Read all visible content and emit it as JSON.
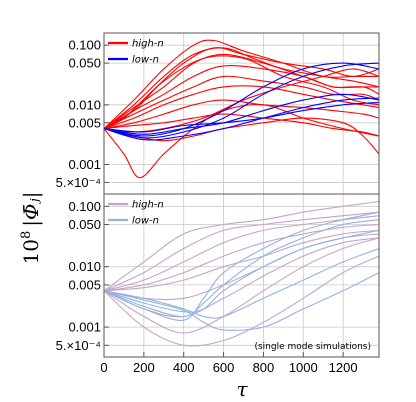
{
  "chart_data": {
    "type": "line",
    "xlabel": "τ",
    "ylabel_prefix": "10",
    "ylabel_exp": "8",
    "ylabel_symbol": "|Φ̄ⱼ|",
    "xlim": [
      0,
      1380
    ],
    "ylim": [
      0.00032,
      0.16
    ],
    "yscale": "log",
    "x_ticks": [
      0,
      200,
      400,
      600,
      800,
      1000,
      1200
    ],
    "x_tick_labels": [
      "0",
      "200",
      "400",
      "600",
      "800",
      "1000",
      "1200"
    ],
    "y_ticks": [
      0.0005,
      0.001,
      0.005,
      0.01,
      0.05,
      0.1
    ],
    "y_tick_labels": [
      "5.×10⁻⁴",
      "0.001",
      "0.005",
      "0.010",
      "0.050",
      "0.100"
    ],
    "grid": true,
    "panels": [
      {
        "id": "top",
        "legend_position": "top-left",
        "series": [
          {
            "name": "high-n",
            "color": "#ff0000",
            "curves": [
              {
                "x": [
                  0,
                  150,
                  300,
                  450,
                  550,
                  700,
                  900,
                  1100,
                  1250,
                  1380
                ],
                "y": [
                  0.004,
                  0.012,
                  0.04,
                  0.1,
                  0.12,
                  0.08,
                  0.05,
                  0.03,
                  0.03,
                  0.03
                ]
              },
              {
                "x": [
                  0,
                  150,
                  300,
                  450,
                  600,
                  750,
                  900,
                  1100,
                  1250,
                  1380
                ],
                "y": [
                  0.004,
                  0.01,
                  0.03,
                  0.07,
                  0.09,
                  0.06,
                  0.04,
                  0.03,
                  0.025,
                  0.02
                ]
              },
              {
                "x": [
                  0,
                  150,
                  300,
                  450,
                  600,
                  800,
                  1000,
                  1150,
                  1300,
                  1380
                ],
                "y": [
                  0.004,
                  0.009,
                  0.02,
                  0.05,
                  0.07,
                  0.05,
                  0.03,
                  0.02,
                  0.02,
                  0.015
                ]
              },
              {
                "x": [
                  0,
                  150,
                  300,
                  450,
                  600,
                  800,
                  1000,
                  1150,
                  1300,
                  1380
                ],
                "y": [
                  0.004,
                  0.008,
                  0.015,
                  0.03,
                  0.045,
                  0.04,
                  0.03,
                  0.02,
                  0.02,
                  0.02
                ]
              },
              {
                "x": [
                  0,
                  150,
                  300,
                  450,
                  600,
                  800,
                  1000,
                  1150,
                  1300,
                  1380
                ],
                "y": [
                  0.004,
                  0.007,
                  0.012,
                  0.02,
                  0.03,
                  0.025,
                  0.02,
                  0.015,
                  0.015,
                  0.012
                ]
              },
              {
                "x": [
                  0,
                  150,
                  300,
                  450,
                  600,
                  800,
                  1000,
                  1150,
                  1300,
                  1380
                ],
                "y": [
                  0.004,
                  0.006,
                  0.01,
                  0.015,
                  0.02,
                  0.02,
                  0.015,
                  0.012,
                  0.01,
                  0.009
                ]
              },
              {
                "x": [
                  0,
                  150,
                  300,
                  450,
                  600,
                  800,
                  1000,
                  1150,
                  1300,
                  1380
                ],
                "y": [
                  0.004,
                  0.005,
                  0.007,
                  0.01,
                  0.012,
                  0.01,
                  0.009,
                  0.008,
                  0.007,
                  0.006
                ]
              },
              {
                "x": [
                  0,
                  150,
                  300,
                  450,
                  600,
                  800,
                  1000,
                  1150,
                  1300,
                  1380
                ],
                "y": [
                  0.004,
                  0.0045,
                  0.005,
                  0.006,
                  0.007,
                  0.006,
                  0.005,
                  0.004,
                  0.0035,
                  0.003
                ]
              },
              {
                "x": [
                  0,
                  100,
                  180,
                  300,
                  450,
                  600,
                  800,
                  1000,
                  1200,
                  1380
                ],
                "y": [
                  0.004,
                  0.0015,
                  0.0006,
                  0.0015,
                  0.004,
                  0.008,
                  0.01,
                  0.006,
                  0.004,
                  0.003
                ]
              },
              {
                "x": [
                  0,
                  150,
                  300,
                  450,
                  600,
                  800,
                  1000,
                  1200,
                  1300,
                  1380
                ],
                "y": [
                  0.004,
                  0.003,
                  0.0025,
                  0.003,
                  0.004,
                  0.005,
                  0.006,
                  0.005,
                  0.003,
                  0.0015
                ]
              },
              {
                "x": [
                  0,
                  100,
                  250,
                  400,
                  550,
                  700,
                  900,
                  1100,
                  1250,
                  1380
                ],
                "y": [
                  0.004,
                  0.006,
                  0.018,
                  0.05,
                  0.09,
                  0.07,
                  0.05,
                  0.04,
                  0.03,
                  0.04
                ]
              },
              {
                "x": [
                  0,
                  150,
                  300,
                  500,
                  700,
                  900,
                  1100,
                  1250,
                  1380
                ],
                "y": [
                  0.004,
                  0.008,
                  0.025,
                  0.06,
                  0.06,
                  0.03,
                  0.02,
                  0.012,
                  0.01
                ]
              },
              {
                "x": [
                  0,
                  150,
                  300,
                  500,
                  700,
                  900,
                  1100,
                  1250,
                  1380
                ],
                "y": [
                  0.004,
                  0.0035,
                  0.004,
                  0.006,
                  0.012,
                  0.02,
                  0.03,
                  0.04,
                  0.03
                ]
              }
            ]
          },
          {
            "name": "low-n",
            "color": "#0000ff",
            "curves": [
              {
                "x": [
                  0,
                  200,
                  400,
                  600,
                  800,
                  1000,
                  1200,
                  1380
                ],
                "y": [
                  0.004,
                  0.003,
                  0.004,
                  0.008,
                  0.02,
                  0.04,
                  0.05,
                  0.04
                ]
              },
              {
                "x": [
                  0,
                  200,
                  400,
                  600,
                  800,
                  1000,
                  1200,
                  1380
                ],
                "y": [
                  0.004,
                  0.0028,
                  0.0035,
                  0.006,
                  0.015,
                  0.03,
                  0.045,
                  0.05
                ]
              },
              {
                "x": [
                  0,
                  200,
                  400,
                  600,
                  800,
                  1000,
                  1200,
                  1380
                ],
                "y": [
                  0.004,
                  0.0032,
                  0.004,
                  0.005,
                  0.008,
                  0.012,
                  0.015,
                  0.012
                ]
              },
              {
                "x": [
                  0,
                  200,
                  400,
                  600,
                  800,
                  1000,
                  1200,
                  1380
                ],
                "y": [
                  0.004,
                  0.0035,
                  0.0045,
                  0.005,
                  0.006,
                  0.008,
                  0.01,
                  0.011
                ]
              },
              {
                "x": [
                  0,
                  200,
                  400,
                  600,
                  800,
                  1000,
                  1200,
                  1380
                ],
                "y": [
                  0.004,
                  0.0026,
                  0.003,
                  0.004,
                  0.006,
                  0.009,
                  0.012,
                  0.013
                ]
              }
            ]
          }
        ]
      },
      {
        "id": "bottom",
        "legend_position": "top-left",
        "note": "(single mode simulations)",
        "series": [
          {
            "name": "high-n",
            "color": "#c8a2c8",
            "curves": [
              {
                "x": [
                  0,
                  200,
                  400,
                  600,
                  800,
                  1000,
                  1200,
                  1380
                ],
                "y": [
                  0.004,
                  0.012,
                  0.035,
                  0.05,
                  0.06,
                  0.08,
                  0.1,
                  0.12
                ]
              },
              {
                "x": [
                  0,
                  200,
                  400,
                  600,
                  800,
                  1000,
                  1200,
                  1380
                ],
                "y": [
                  0.004,
                  0.008,
                  0.02,
                  0.04,
                  0.05,
                  0.06,
                  0.07,
                  0.08
                ]
              },
              {
                "x": [
                  0,
                  200,
                  400,
                  600,
                  800,
                  1000,
                  1200,
                  1380
                ],
                "y": [
                  0.004,
                  0.006,
                  0.012,
                  0.025,
                  0.04,
                  0.05,
                  0.06,
                  0.07
                ]
              },
              {
                "x": [
                  0,
                  200,
                  400,
                  600,
                  800,
                  1000,
                  1200,
                  1380
                ],
                "y": [
                  0.004,
                  0.005,
                  0.008,
                  0.015,
                  0.025,
                  0.035,
                  0.045,
                  0.05
                ]
              },
              {
                "x": [
                  0,
                  200,
                  400,
                  600,
                  800,
                  1000,
                  1200,
                  1380
                ],
                "y": [
                  0.004,
                  0.0045,
                  0.006,
                  0.01,
                  0.015,
                  0.025,
                  0.035,
                  0.04
                ]
              },
              {
                "x": [
                  0,
                  200,
                  400,
                  600,
                  800,
                  1000,
                  1200,
                  1380
                ],
                "y": [
                  0.004,
                  0.003,
                  0.003,
                  0.005,
                  0.01,
                  0.02,
                  0.03,
                  0.035
                ]
              },
              {
                "x": [
                  0,
                  200,
                  400,
                  600,
                  800,
                  1000,
                  1200,
                  1380
                ],
                "y": [
                  0.004,
                  0.002,
                  0.0015,
                  0.003,
                  0.007,
                  0.015,
                  0.025,
                  0.03
                ]
              },
              {
                "x": [
                  0,
                  200,
                  400,
                  600,
                  800,
                  1000,
                  1200,
                  1380
                ],
                "y": [
                  0.004,
                  0.0015,
                  0.0008,
                  0.0015,
                  0.004,
                  0.01,
                  0.02,
                  0.03
                ]
              },
              {
                "x": [
                  0,
                  200,
                  400,
                  600,
                  800,
                  1000,
                  1200,
                  1380
                ],
                "y": [
                  0.004,
                  0.001,
                  0.0005,
                  0.0006,
                  0.0012,
                  0.003,
                  0.008,
                  0.015
                ]
              }
            ]
          },
          {
            "name": "low-n",
            "color": "#8fb4e3",
            "curves": [
              {
                "x": [
                  0,
                  200,
                  400,
                  500,
                  600,
                  800,
                  1000,
                  1200,
                  1380
                ],
                "y": [
                  0.004,
                  0.002,
                  0.0013,
                  0.003,
                  0.008,
                  0.02,
                  0.04,
                  0.06,
                  0.08
                ]
              },
              {
                "x": [
                  0,
                  200,
                  400,
                  500,
                  600,
                  800,
                  1000,
                  1200,
                  1380
                ],
                "y": [
                  0.004,
                  0.0022,
                  0.0015,
                  0.0025,
                  0.005,
                  0.015,
                  0.03,
                  0.05,
                  0.06
                ]
              },
              {
                "x": [
                  0,
                  200,
                  400,
                  500,
                  600,
                  800,
                  1000,
                  1200,
                  1380
                ],
                "y": [
                  0.004,
                  0.0025,
                  0.0018,
                  0.002,
                  0.004,
                  0.01,
                  0.02,
                  0.03,
                  0.04
                ]
              },
              {
                "x": [
                  0,
                  200,
                  400,
                  500,
                  600,
                  800,
                  1000,
                  1200,
                  1380
                ],
                "y": [
                  0.004,
                  0.003,
                  0.002,
                  0.0015,
                  0.0015,
                  0.003,
                  0.006,
                  0.012,
                  0.02
                ]
              },
              {
                "x": [
                  0,
                  200,
                  400,
                  500,
                  600,
                  800,
                  1000,
                  1200,
                  1380
                ],
                "y": [
                  0.004,
                  0.0028,
                  0.0019,
                  0.0012,
                  0.0009,
                  0.001,
                  0.002,
                  0.004,
                  0.008
                ]
              }
            ]
          }
        ]
      }
    ]
  }
}
